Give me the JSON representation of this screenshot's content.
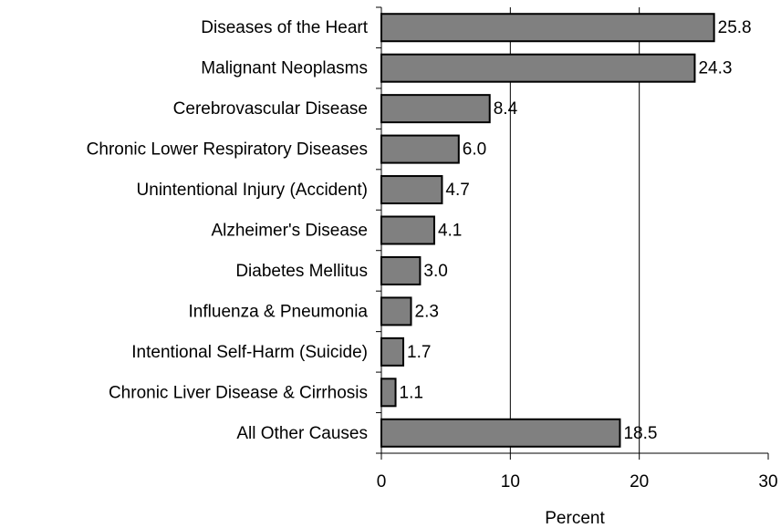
{
  "chart_data": {
    "type": "bar",
    "orientation": "horizontal",
    "x_label": "Percent",
    "categories": [
      "Diseases of the Heart",
      "Malignant Neoplasms",
      "Cerebrovascular Disease",
      "Chronic Lower Respiratory Diseases",
      "Unintentional Injury (Accident)",
      "Alzheimer's Disease",
      "Diabetes Mellitus",
      "Influenza & Pneumonia",
      "Intentional Self-Harm (Suicide)",
      "Chronic Liver Disease & Cirrhosis",
      "All Other Causes"
    ],
    "values": [
      25.8,
      24.3,
      8.4,
      6.0,
      4.7,
      4.1,
      3.0,
      2.3,
      1.7,
      1.1,
      18.5
    ],
    "value_labels": [
      "25.8",
      "24.3",
      "8.4",
      "6.0",
      "4.7",
      "4.1",
      "3.0",
      "2.3",
      "1.7",
      "1.1",
      "18.5"
    ],
    "color": "#808080",
    "xlim": [
      0,
      30
    ],
    "xticks": [
      0,
      10,
      20,
      30
    ],
    "grid": true
  }
}
